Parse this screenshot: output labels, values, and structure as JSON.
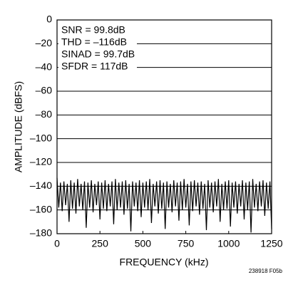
{
  "chart_data": {
    "type": "line",
    "x_label": "FREQUENCY (kHz)",
    "y_label": "AMPLITUDE (dBFS)",
    "annotations": [
      "SNR = 99.8dB",
      "THD = –116dB",
      "SINAD = 99.7dB",
      "SFDR = 117dB"
    ],
    "figure_code": "238918 F05b",
    "xlim": [
      0,
      1250
    ],
    "xticks": [
      0,
      250,
      500,
      750,
      1000,
      1250
    ],
    "ylim": [
      -180,
      0
    ],
    "yticks": [
      0,
      {
        "value": -20,
        "label": "–20"
      },
      {
        "value": -40,
        "label": "–40"
      },
      {
        "value": -60,
        "label": "–60"
      },
      {
        "value": -80,
        "label": "–80"
      },
      {
        "value": -100,
        "label": "–100"
      },
      {
        "value": -120,
        "label": "–120"
      },
      {
        "value": -140,
        "label": "–140"
      },
      {
        "value": -160,
        "label": "–160"
      },
      {
        "value": -180,
        "label": "–180"
      }
    ],
    "grid": true,
    "x": [
      0,
      10,
      20,
      30,
      40,
      50,
      60,
      70,
      80,
      90,
      100,
      110,
      120,
      130,
      140,
      150,
      160,
      170,
      180,
      190,
      200,
      210,
      220,
      230,
      240,
      250,
      260,
      270,
      280,
      290,
      300,
      310,
      320,
      330,
      340,
      350,
      360,
      370,
      380,
      390,
      400,
      410,
      420,
      430,
      440,
      450,
      460,
      470,
      480,
      490,
      500,
      510,
      520,
      530,
      540,
      550,
      560,
      570,
      580,
      590,
      600,
      610,
      620,
      630,
      640,
      650,
      660,
      670,
      680,
      690,
      700,
      710,
      720,
      730,
      740,
      750,
      760,
      770,
      780,
      790,
      800,
      810,
      820,
      830,
      840,
      850,
      860,
      870,
      880,
      890,
      900,
      910,
      920,
      930,
      940,
      950,
      960,
      970,
      980,
      990,
      1000,
      1010,
      1020,
      1030,
      1040,
      1050,
      1060,
      1070,
      1080,
      1090,
      1100,
      1110,
      1120,
      1130,
      1140,
      1150,
      1160,
      1170,
      1180,
      1190,
      1200,
      1210,
      1220,
      1230,
      1240,
      1250
    ],
    "series": [
      {
        "color": "#000000",
        "values": [
          -133,
          -158,
          -137,
          -161,
          -136,
          -156,
          -138,
          -170,
          -135,
          -159,
          -137,
          -163,
          -134,
          -157,
          -138,
          -160,
          -136,
          -175,
          -137,
          -158,
          -135,
          -162,
          -138,
          -156,
          -136,
          -168,
          -137,
          -159,
          -135,
          -161,
          -138,
          -157,
          -136,
          -172,
          -134,
          -160,
          -137,
          -158,
          -136,
          -164,
          -135,
          -159,
          -138,
          -178,
          -136,
          -157,
          -137,
          -161,
          -135,
          -166,
          -137,
          -158,
          -136,
          -160,
          -134,
          -171,
          -138,
          -157,
          -136,
          -163,
          -135,
          -159,
          -137,
          -176,
          -136,
          -158,
          -138,
          -162,
          -135,
          -157,
          -137,
          -169,
          -136,
          -160,
          -134,
          -158,
          -138,
          -173,
          -136,
          -161,
          -135,
          -157,
          -137,
          -164,
          -136,
          -159,
          -138,
          -177,
          -135,
          -158,
          -137,
          -162,
          -136,
          -157,
          -134,
          -170,
          -138,
          -160,
          -136,
          -159,
          -135,
          -174,
          -137,
          -158,
          -136,
          -163,
          -138,
          -157,
          -135,
          -168,
          -137,
          -160,
          -136,
          -179,
          -134,
          -158,
          -138,
          -161,
          -136,
          -157,
          -135,
          -165,
          -137,
          -159,
          -136,
          -176
        ]
      }
    ]
  }
}
